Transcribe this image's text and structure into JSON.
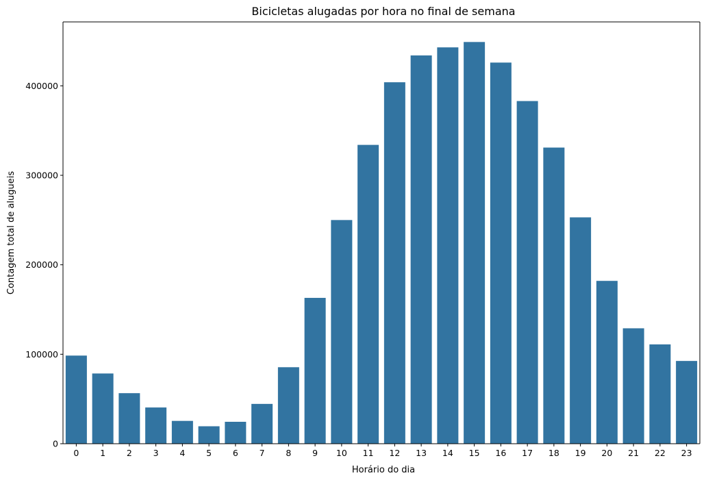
{
  "chart_data": {
    "type": "bar",
    "title": "Bicicletas alugadas por hora no final de semana",
    "xlabel": "Horário do dia",
    "ylabel": "Contagem total de alugueis",
    "categories": [
      "0",
      "1",
      "2",
      "3",
      "4",
      "5",
      "6",
      "7",
      "8",
      "9",
      "10",
      "11",
      "12",
      "13",
      "14",
      "15",
      "16",
      "17",
      "18",
      "19",
      "20",
      "21",
      "22",
      "23"
    ],
    "values": [
      98500,
      78500,
      56500,
      40500,
      25500,
      19500,
      24500,
      44500,
      85500,
      163000,
      250000,
      334000,
      404000,
      434000,
      443000,
      449000,
      426000,
      383000,
      331000,
      253000,
      182000,
      129000,
      111000,
      92500
    ],
    "yticks": [
      0,
      100000,
      200000,
      300000,
      400000
    ],
    "ytick_labels": [
      "0",
      "100000",
      "200000",
      "300000",
      "400000"
    ],
    "ylim": [
      0,
      471450
    ],
    "grid": false,
    "bar_color": "#3274a1"
  }
}
